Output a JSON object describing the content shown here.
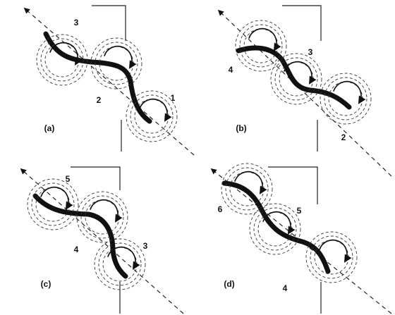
{
  "panels": [
    {
      "label": "(a)",
      "numbers": [
        "3",
        "2",
        "1"
      ]
    },
    {
      "label": "(b)",
      "numbers": [
        "4",
        "3",
        "2"
      ]
    },
    {
      "label": "(c)",
      "numbers": [
        "5",
        "4",
        "3"
      ]
    },
    {
      "label": "(d)",
      "numbers": [
        "6",
        "5",
        "4"
      ]
    }
  ]
}
